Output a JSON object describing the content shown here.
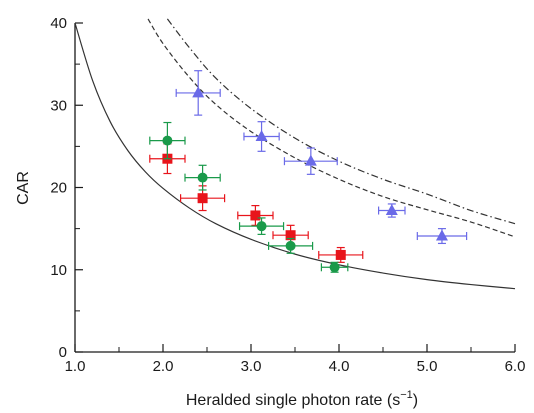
{
  "chart_data": {
    "type": "scatter",
    "xlabel": "Heralded single photon rate (s",
    "xlabel_sup": "−1",
    "xlabel_close": ")",
    "ylabel": "CAR",
    "xlim": [
      1.0,
      6.0
    ],
    "ylim": [
      0,
      40
    ],
    "xticks": [
      1.0,
      2.0,
      3.0,
      4.0,
      5.0,
      6.0
    ],
    "xtick_labels": [
      "1.0",
      "2.0",
      "3.0",
      "4.0",
      "5.0",
      "6.0"
    ],
    "yticks": [
      0,
      10,
      20,
      30,
      40
    ],
    "ytick_labels": [
      "0",
      "10",
      "20",
      "30",
      "40"
    ],
    "grid": false,
    "series": [
      {
        "marker": "square",
        "color": "#e8141b",
        "points": [
          {
            "x": 2.05,
            "y": 23.5,
            "xerr": 0.2,
            "yerr": 1.8
          },
          {
            "x": 2.45,
            "y": 18.7,
            "xerr": 0.25,
            "yerr": 1.5
          },
          {
            "x": 3.05,
            "y": 16.6,
            "xerr": 0.2,
            "yerr": 1.2
          },
          {
            "x": 3.45,
            "y": 14.2,
            "xerr": 0.2,
            "yerr": 1.2
          },
          {
            "x": 4.02,
            "y": 11.8,
            "xerr": 0.25,
            "yerr": 0.9
          }
        ]
      },
      {
        "marker": "circle",
        "color": "#1a9a4a",
        "points": [
          {
            "x": 2.05,
            "y": 25.7,
            "xerr": 0.2,
            "yerr": 2.2
          },
          {
            "x": 2.45,
            "y": 21.2,
            "xerr": 0.2,
            "yerr": 1.5
          },
          {
            "x": 3.12,
            "y": 15.3,
            "xerr": 0.25,
            "yerr": 1.0
          },
          {
            "x": 3.45,
            "y": 12.9,
            "xerr": 0.25,
            "yerr": 0.9
          },
          {
            "x": 3.95,
            "y": 10.3,
            "xerr": 0.15,
            "yerr": 0.6
          }
        ]
      },
      {
        "marker": "triangle",
        "color": "#6a6ae8",
        "points": [
          {
            "x": 2.4,
            "y": 31.5,
            "xerr": 0.25,
            "yerr": 2.7
          },
          {
            "x": 3.12,
            "y": 26.2,
            "xerr": 0.2,
            "yerr": 1.8
          },
          {
            "x": 3.68,
            "y": 23.2,
            "xerr": 0.3,
            "yerr": 1.6
          },
          {
            "x": 4.6,
            "y": 17.2,
            "xerr": 0.15,
            "yerr": 0.8
          },
          {
            "x": 5.17,
            "y": 14.1,
            "xerr": 0.28,
            "yerr": 0.9
          }
        ]
      }
    ],
    "curves": [
      {
        "style": "solid",
        "color": "#333333",
        "x": [
          1.0,
          1.2,
          1.4,
          1.6,
          1.8,
          2.0,
          2.3,
          2.6,
          3.0,
          3.5,
          4.0,
          4.5,
          5.0,
          5.5,
          6.0
        ],
        "y": [
          40.0,
          33.0,
          28.0,
          24.5,
          21.9,
          19.9,
          17.5,
          15.6,
          13.7,
          11.9,
          10.6,
          9.6,
          8.8,
          8.2,
          7.7
        ]
      },
      {
        "style": "dashed",
        "color": "#333333",
        "x": [
          1.83,
          2.0,
          2.3,
          2.6,
          3.0,
          3.5,
          4.0,
          4.5,
          5.0,
          5.5,
          6.0
        ],
        "y": [
          40.5,
          37.5,
          33.4,
          30.1,
          26.8,
          23.6,
          21.0,
          18.9,
          17.3,
          15.8,
          14.0
        ]
      },
      {
        "style": "dashdot",
        "color": "#333333",
        "x": [
          2.05,
          2.3,
          2.6,
          3.0,
          3.5,
          4.0,
          4.5,
          5.0,
          5.5,
          6.0
        ],
        "y": [
          40.5,
          37.0,
          33.3,
          29.6,
          26.0,
          23.2,
          21.0,
          19.2,
          17.2,
          15.6
        ]
      }
    ]
  }
}
